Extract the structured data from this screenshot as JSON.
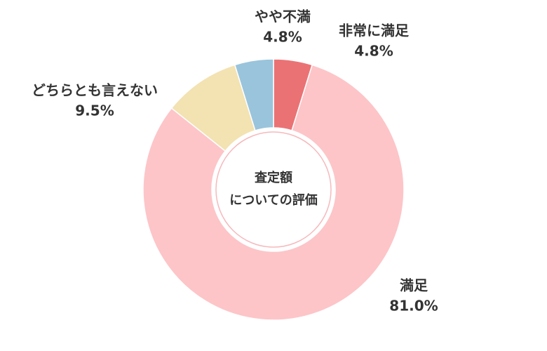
{
  "chart_data": {
    "type": "pie",
    "center_label": [
      "査定額",
      "についての評価"
    ],
    "categories": [
      "非常に満足",
      "満足",
      "どちらとも言えない",
      "やや不満"
    ],
    "values": [
      4.8,
      81.0,
      9.5,
      4.8
    ],
    "value_labels": [
      "4.8%",
      "81.0%",
      "9.5%",
      "4.8%"
    ],
    "colors": [
      "#eb7274",
      "#fdc5c8",
      "#f3e2b2",
      "#99c4dc"
    ]
  }
}
